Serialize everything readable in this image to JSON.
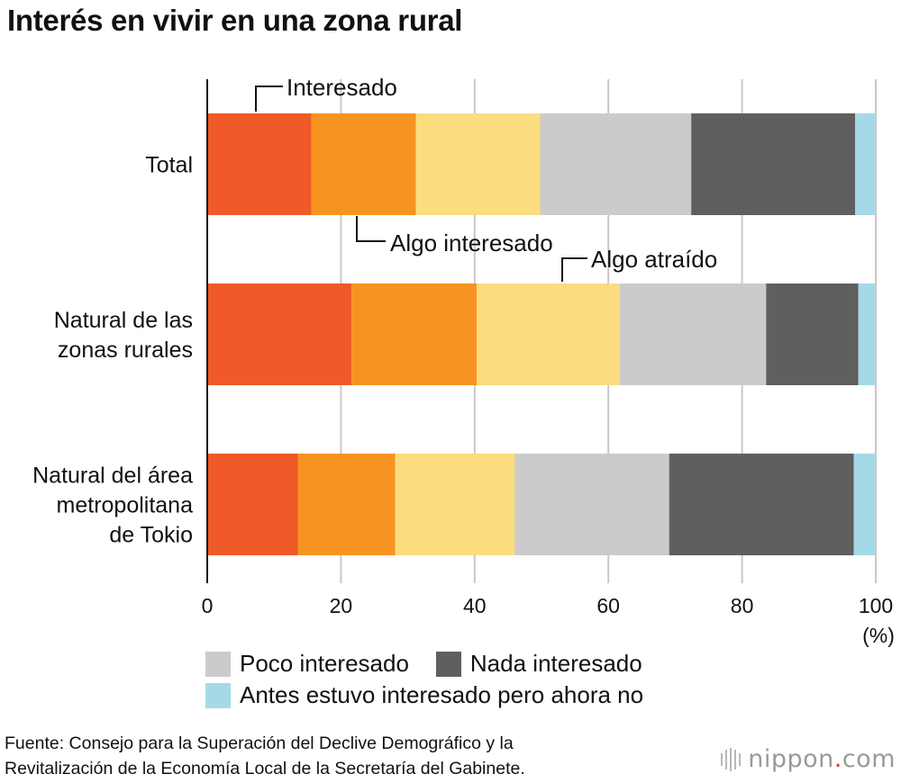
{
  "title": "Interés en vivir en una zona rural",
  "chart_data": {
    "type": "bar",
    "orientation": "horizontal",
    "stacked": true,
    "title": "Interés en vivir en una zona rural",
    "categories": [
      [
        "Total"
      ],
      [
        "Natural de las",
        "zonas rurales"
      ],
      [
        "Natural del área",
        "metropolitana",
        "de Tokio"
      ]
    ],
    "series": [
      {
        "name": "Interesado",
        "color": "#f05a28",
        "values": [
          15.6,
          21.6,
          13.6
        ]
      },
      {
        "name": "Algo interesado",
        "color": "#f79421",
        "values": [
          15.6,
          18.7,
          14.5
        ]
      },
      {
        "name": "Algo atraído",
        "color": "#fbdc7f",
        "values": [
          18.6,
          21.4,
          17.9
        ]
      },
      {
        "name": "Poco interesado",
        "color": "#cbcbcb",
        "values": [
          22.6,
          21.9,
          23.1
        ]
      },
      {
        "name": "Nada interesado",
        "color": "#5f5f5f",
        "values": [
          24.5,
          13.8,
          27.6
        ]
      },
      {
        "name": "Antes estuvo interesado pero ahora no",
        "color": "#a6d9e8",
        "values": [
          3.1,
          2.6,
          3.3
        ]
      }
    ],
    "xlim": [
      0,
      100
    ],
    "xticks": [
      0,
      20,
      40,
      60,
      80,
      100
    ],
    "xunit": "(%)",
    "grid": true,
    "annotations": [
      "Interesado",
      "Algo interesado",
      "Algo atraído"
    ]
  },
  "legend": {
    "row1": [
      {
        "label": "Poco interesado",
        "color": "#cbcbcb"
      },
      {
        "label": "Nada interesado",
        "color": "#5f5f5f"
      }
    ],
    "row2": [
      {
        "label": "Antes estuvo interesado pero ahora no",
        "color": "#a6d9e8"
      }
    ]
  },
  "source": {
    "line1": "Fuente: Consejo para la Superación del Declive Demográfico y la",
    "line2": "Revitalización de la Economía Local de la Secretaría del Gabinete."
  },
  "logo": {
    "name": "nippon",
    "dot": ".",
    "tld": "com"
  }
}
